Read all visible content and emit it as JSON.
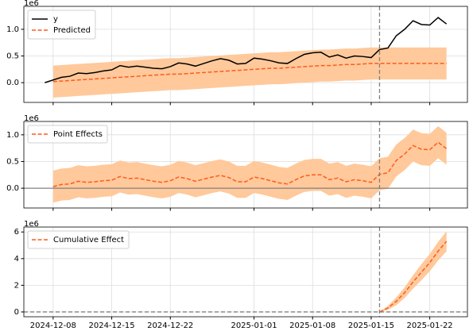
{
  "chart_data": [
    {
      "type": "line",
      "offset_label": "1e6",
      "legend": "upper left",
      "grid": true,
      "intervention": "2025-01-16",
      "x": [
        "2024-12-07",
        "2024-12-08",
        "2024-12-09",
        "2024-12-10",
        "2024-12-11",
        "2024-12-12",
        "2024-12-13",
        "2024-12-14",
        "2024-12-15",
        "2024-12-16",
        "2024-12-17",
        "2024-12-18",
        "2024-12-19",
        "2024-12-20",
        "2024-12-21",
        "2024-12-22",
        "2024-12-23",
        "2024-12-24",
        "2024-12-25",
        "2024-12-26",
        "2024-12-27",
        "2024-12-28",
        "2024-12-29",
        "2024-12-30",
        "2024-12-31",
        "2025-01-01",
        "2025-01-02",
        "2025-01-03",
        "2025-01-04",
        "2025-01-05",
        "2025-01-06",
        "2025-01-07",
        "2025-01-08",
        "2025-01-09",
        "2025-01-10",
        "2025-01-11",
        "2025-01-12",
        "2025-01-13",
        "2025-01-14",
        "2025-01-15",
        "2025-01-16",
        "2025-01-17",
        "2025-01-18",
        "2025-01-19",
        "2025-01-20",
        "2025-01-21",
        "2025-01-22",
        "2025-01-23",
        "2025-01-24"
      ],
      "xlim": [
        "2024-12-04T12:00",
        "2025-01-26T12:00"
      ],
      "xticks": [
        "2024-12-08",
        "2024-12-15",
        "2024-12-22",
        "2025-01-01",
        "2025-01-08",
        "2025-01-15",
        "2025-01-22"
      ],
      "ylim": [
        -0.37,
        1.43
      ],
      "yticks": [
        {
          "value": 0,
          "label": "0.0"
        },
        {
          "value": 0.5,
          "label": "0.5"
        },
        {
          "value": 1,
          "label": "1.0"
        }
      ],
      "series": [
        {
          "name": "y",
          "color": "#000000",
          "dash": false,
          "values": [
            0.0,
            0.05,
            0.1,
            0.12,
            0.18,
            0.17,
            0.19,
            0.22,
            0.24,
            0.32,
            0.29,
            0.31,
            0.29,
            0.27,
            0.26,
            0.3,
            0.37,
            0.35,
            0.31,
            0.36,
            0.41,
            0.45,
            0.42,
            0.35,
            0.36,
            0.46,
            0.44,
            0.41,
            0.37,
            0.36,
            0.45,
            0.53,
            0.56,
            0.57,
            0.48,
            0.52,
            0.46,
            0.5,
            0.49,
            0.47,
            0.62,
            0.65,
            0.88,
            1.0,
            1.16,
            1.09,
            1.08,
            1.22,
            1.1
          ]
        },
        {
          "name": "Predicted",
          "color": "#ff5a1f",
          "dash": true,
          "band_color": "#ffc99b",
          "values": [
            null,
            0.02,
            0.03,
            0.04,
            0.05,
            0.06,
            0.07,
            0.08,
            0.09,
            0.1,
            0.11,
            0.12,
            0.13,
            0.14,
            0.15,
            0.16,
            0.16,
            0.17,
            0.18,
            0.19,
            0.2,
            0.21,
            0.22,
            0.23,
            0.24,
            0.25,
            0.26,
            0.27,
            0.27,
            0.28,
            0.29,
            0.3,
            0.31,
            0.32,
            0.32,
            0.33,
            0.34,
            0.34,
            0.35,
            0.36,
            0.36,
            0.36,
            0.36,
            0.36,
            0.36,
            0.36,
            0.36,
            0.36,
            0.36
          ],
          "lower": [
            null,
            -0.28,
            -0.27,
            -0.26,
            -0.25,
            -0.24,
            -0.23,
            -0.22,
            -0.21,
            -0.2,
            -0.19,
            -0.18,
            -0.17,
            -0.16,
            -0.15,
            -0.14,
            -0.14,
            -0.13,
            -0.12,
            -0.11,
            -0.1,
            -0.09,
            -0.08,
            -0.07,
            -0.06,
            -0.05,
            -0.04,
            -0.03,
            -0.03,
            -0.02,
            -0.01,
            0,
            0.01,
            0.02,
            0.02,
            0.03,
            0.04,
            0.04,
            0.05,
            0.06,
            0.06,
            0.06,
            0.06,
            0.06,
            0.06,
            0.06,
            0.06,
            0.06,
            0.06
          ],
          "upper": [
            null,
            0.32,
            0.33,
            0.34,
            0.35,
            0.36,
            0.37,
            0.38,
            0.39,
            0.4,
            0.41,
            0.42,
            0.43,
            0.44,
            0.45,
            0.46,
            0.46,
            0.47,
            0.48,
            0.49,
            0.5,
            0.51,
            0.52,
            0.53,
            0.54,
            0.55,
            0.56,
            0.57,
            0.57,
            0.58,
            0.59,
            0.6,
            0.61,
            0.62,
            0.62,
            0.63,
            0.64,
            0.64,
            0.65,
            0.66,
            0.66,
            0.66,
            0.66,
            0.66,
            0.66,
            0.66,
            0.66,
            0.66,
            0.66
          ]
        }
      ]
    },
    {
      "type": "line",
      "offset_label": "1e6",
      "legend": "upper left",
      "grid": true,
      "intervention": "2025-01-16",
      "zero_line": "solid",
      "x": [
        "2024-12-07",
        "2024-12-08",
        "2024-12-09",
        "2024-12-10",
        "2024-12-11",
        "2024-12-12",
        "2024-12-13",
        "2024-12-14",
        "2024-12-15",
        "2024-12-16",
        "2024-12-17",
        "2024-12-18",
        "2024-12-19",
        "2024-12-20",
        "2024-12-21",
        "2024-12-22",
        "2024-12-23",
        "2024-12-24",
        "2024-12-25",
        "2024-12-26",
        "2024-12-27",
        "2024-12-28",
        "2024-12-29",
        "2024-12-30",
        "2024-12-31",
        "2025-01-01",
        "2025-01-02",
        "2025-01-03",
        "2025-01-04",
        "2025-01-05",
        "2025-01-06",
        "2025-01-07",
        "2025-01-08",
        "2025-01-09",
        "2025-01-10",
        "2025-01-11",
        "2025-01-12",
        "2025-01-13",
        "2025-01-14",
        "2025-01-15",
        "2025-01-16",
        "2025-01-17",
        "2025-01-18",
        "2025-01-19",
        "2025-01-20",
        "2025-01-21",
        "2025-01-22",
        "2025-01-23",
        "2025-01-24"
      ],
      "xlim": [
        "2024-12-04T12:00",
        "2025-01-26T12:00"
      ],
      "xticks": [
        "2024-12-08",
        "2024-12-15",
        "2024-12-22",
        "2025-01-01",
        "2025-01-08",
        "2025-01-15",
        "2025-01-22"
      ],
      "ylim": [
        -0.37,
        1.25
      ],
      "yticks": [
        {
          "value": 0,
          "label": "0.0"
        },
        {
          "value": 0.5,
          "label": "0.5"
        },
        {
          "value": 1,
          "label": "1.0"
        }
      ],
      "series": [
        {
          "name": "Point Effects",
          "color": "#ff5a1f",
          "dash": true,
          "band_color": "#ffc99b",
          "values": [
            null,
            0.03,
            0.07,
            0.08,
            0.13,
            0.11,
            0.12,
            0.14,
            0.15,
            0.22,
            0.18,
            0.19,
            0.16,
            0.13,
            0.11,
            0.14,
            0.21,
            0.18,
            0.13,
            0.17,
            0.21,
            0.24,
            0.2,
            0.12,
            0.12,
            0.21,
            0.18,
            0.14,
            0.1,
            0.08,
            0.16,
            0.23,
            0.25,
            0.25,
            0.16,
            0.19,
            0.12,
            0.16,
            0.14,
            0.11,
            0.26,
            0.29,
            0.52,
            0.64,
            0.8,
            0.73,
            0.72,
            0.86,
            0.74
          ],
          "lower": [
            null,
            -0.27,
            -0.23,
            -0.22,
            -0.17,
            -0.19,
            -0.18,
            -0.16,
            -0.15,
            -0.08,
            -0.12,
            -0.11,
            -0.14,
            -0.17,
            -0.19,
            -0.16,
            -0.09,
            -0.12,
            -0.17,
            -0.13,
            -0.09,
            -0.06,
            -0.1,
            -0.18,
            -0.18,
            -0.09,
            -0.12,
            -0.16,
            -0.2,
            -0.22,
            -0.14,
            -0.07,
            -0.05,
            -0.05,
            -0.14,
            -0.11,
            -0.18,
            -0.14,
            -0.16,
            -0.19,
            -0.04,
            -0.01,
            0.22,
            0.34,
            0.5,
            0.43,
            0.42,
            0.56,
            0.44
          ],
          "upper": [
            null,
            0.33,
            0.37,
            0.38,
            0.43,
            0.41,
            0.42,
            0.44,
            0.45,
            0.52,
            0.48,
            0.49,
            0.46,
            0.43,
            0.41,
            0.44,
            0.51,
            0.48,
            0.43,
            0.47,
            0.51,
            0.54,
            0.5,
            0.42,
            0.42,
            0.51,
            0.48,
            0.44,
            0.4,
            0.38,
            0.46,
            0.53,
            0.55,
            0.55,
            0.46,
            0.49,
            0.42,
            0.46,
            0.44,
            0.41,
            0.56,
            0.59,
            0.82,
            0.94,
            1.1,
            1.03,
            1.02,
            1.16,
            1.04
          ]
        }
      ]
    },
    {
      "type": "line",
      "offset_label": "1e6",
      "legend": "upper left",
      "grid": true,
      "intervention": "2025-01-16",
      "zero_line": "dashed",
      "x": [
        "2024-12-07",
        "2024-12-08",
        "2024-12-09",
        "2024-12-10",
        "2024-12-11",
        "2024-12-12",
        "2024-12-13",
        "2024-12-14",
        "2024-12-15",
        "2024-12-16",
        "2024-12-17",
        "2024-12-18",
        "2024-12-19",
        "2024-12-20",
        "2024-12-21",
        "2024-12-22",
        "2024-12-23",
        "2024-12-24",
        "2024-12-25",
        "2024-12-26",
        "2024-12-27",
        "2024-12-28",
        "2024-12-29",
        "2024-12-30",
        "2024-12-31",
        "2025-01-01",
        "2025-01-02",
        "2025-01-03",
        "2025-01-04",
        "2025-01-05",
        "2025-01-06",
        "2025-01-07",
        "2025-01-08",
        "2025-01-09",
        "2025-01-10",
        "2025-01-11",
        "2025-01-12",
        "2025-01-13",
        "2025-01-14",
        "2025-01-15",
        "2025-01-16",
        "2025-01-17",
        "2025-01-18",
        "2025-01-19",
        "2025-01-20",
        "2025-01-21",
        "2025-01-22",
        "2025-01-23",
        "2025-01-24"
      ],
      "xlim": [
        "2024-12-04T12:00",
        "2025-01-26T12:00"
      ],
      "xticks": [
        "2024-12-08",
        "2024-12-15",
        "2024-12-22",
        "2025-01-01",
        "2025-01-08",
        "2025-01-15",
        "2025-01-22"
      ],
      "xtick_labels": true,
      "ylim": [
        -0.36,
        6.37
      ],
      "yticks": [
        0,
        2,
        4,
        6
      ],
      "series": [
        {
          "name": "Cumulative Effect",
          "color": "#ff5a1f",
          "dash": true,
          "band_color": "#ffc99b",
          "values": [
            null,
            null,
            null,
            null,
            null,
            null,
            null,
            null,
            null,
            null,
            null,
            null,
            null,
            null,
            null,
            null,
            null,
            null,
            null,
            null,
            null,
            null,
            null,
            null,
            null,
            null,
            null,
            null,
            null,
            null,
            null,
            null,
            null,
            null,
            null,
            null,
            null,
            null,
            null,
            null,
            0,
            0.3,
            0.8,
            1.45,
            2.25,
            2.98,
            3.7,
            4.56,
            5.3
          ],
          "lower": [
            null,
            null,
            null,
            null,
            null,
            null,
            null,
            null,
            null,
            null,
            null,
            null,
            null,
            null,
            null,
            null,
            null,
            null,
            null,
            null,
            null,
            null,
            null,
            null,
            null,
            null,
            null,
            null,
            null,
            null,
            null,
            null,
            null,
            null,
            null,
            null,
            null,
            null,
            null,
            null,
            0,
            0.15,
            0.5,
            1.05,
            1.75,
            2.38,
            3.05,
            3.86,
            4.55
          ],
          "upper": [
            null,
            null,
            null,
            null,
            null,
            null,
            null,
            null,
            null,
            null,
            null,
            null,
            null,
            null,
            null,
            null,
            null,
            null,
            null,
            null,
            null,
            null,
            null,
            null,
            null,
            null,
            null,
            null,
            null,
            null,
            null,
            null,
            null,
            null,
            null,
            null,
            null,
            null,
            null,
            null,
            0,
            0.45,
            1.1,
            1.85,
            2.75,
            3.58,
            4.35,
            5.26,
            6.05
          ]
        }
      ]
    }
  ]
}
